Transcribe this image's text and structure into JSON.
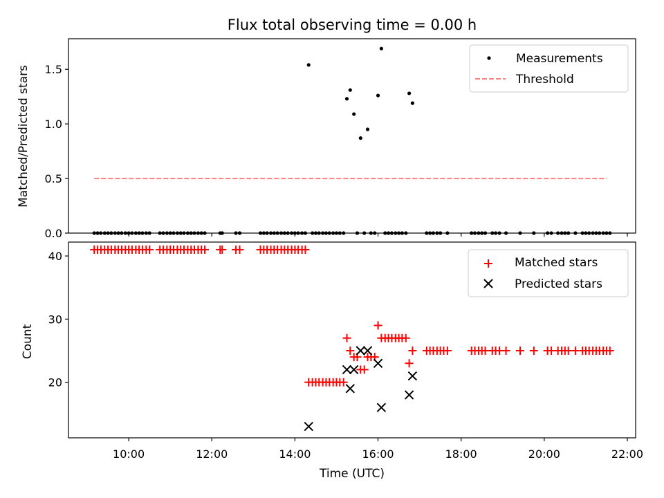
{
  "chart_data": [
    {
      "type": "scatter",
      "title": "Flux total observing time = 0.00 h",
      "xlabel": "",
      "ylabel": "Matched/Predicted stars",
      "xlim": [
        8.55,
        22.2
      ],
      "ylim": [
        0.0,
        1.78
      ],
      "yticks": [
        0.0,
        0.5,
        1.0,
        1.5
      ],
      "ytick_labels": [
        "0.0",
        "0.5",
        "1.0",
        "1.5"
      ],
      "legend_position": "top-right",
      "series": [
        {
          "name": "Measurements",
          "kind": "points",
          "color": "#000000",
          "x": [
            14.33,
            15.25,
            15.33,
            15.42,
            15.58,
            15.75,
            16.0,
            16.08,
            16.75,
            16.83
          ],
          "y": [
            1.54,
            1.23,
            1.31,
            1.09,
            0.87,
            0.95,
            1.26,
            1.69,
            1.28,
            1.19
          ],
          "zero_x": [
            9.17,
            9.25,
            9.33,
            9.42,
            9.5,
            9.58,
            9.67,
            9.75,
            9.83,
            9.92,
            10.0,
            10.08,
            10.17,
            10.25,
            10.33,
            10.42,
            10.5,
            10.75,
            10.83,
            10.92,
            11.0,
            11.08,
            11.17,
            11.25,
            11.33,
            11.42,
            11.5,
            11.58,
            11.67,
            11.75,
            11.83,
            12.2,
            12.25,
            12.58,
            12.67,
            13.17,
            13.25,
            13.33,
            13.42,
            13.5,
            13.58,
            13.67,
            13.75,
            13.83,
            13.92,
            14.0,
            14.08,
            14.17,
            14.25,
            14.42,
            14.5,
            14.58,
            14.67,
            14.75,
            14.83,
            14.92,
            15.0,
            15.08,
            15.17,
            15.5,
            15.67,
            15.83,
            15.92,
            16.17,
            16.25,
            16.33,
            16.42,
            16.5,
            16.58,
            16.67,
            17.17,
            17.25,
            17.33,
            17.42,
            17.5,
            17.67,
            18.25,
            18.33,
            18.42,
            18.5,
            18.58,
            18.75,
            18.83,
            18.92,
            19.08,
            19.42,
            19.75,
            20.08,
            20.17,
            20.33,
            20.42,
            20.5,
            20.58,
            20.75,
            20.92,
            21.0,
            21.08,
            21.17,
            21.25,
            21.33,
            21.42,
            21.5,
            21.58
          ]
        },
        {
          "name": "Threshold",
          "kind": "dashed-line",
          "color": "#ff7f7f",
          "x": [
            9.17,
            21.5
          ],
          "y": [
            0.5,
            0.5
          ]
        }
      ]
    },
    {
      "type": "scatter",
      "title": "",
      "xlabel": "Time (UTC)",
      "ylabel": "Count",
      "xlim": [
        8.55,
        22.2
      ],
      "ylim": [
        11.2,
        42.2
      ],
      "yticks": [
        20,
        30,
        40
      ],
      "ytick_labels": [
        "20",
        "30",
        "40"
      ],
      "xticks": [
        10,
        12,
        14,
        16,
        18,
        20,
        22
      ],
      "xtick_labels": [
        "10:00",
        "12:00",
        "14:00",
        "16:00",
        "18:00",
        "20:00",
        "22:00"
      ],
      "legend_position": "top-right",
      "series": [
        {
          "name": "Matched stars",
          "marker": "plus",
          "color": "#ff0000",
          "x": [
            9.17,
            9.25,
            9.33,
            9.42,
            9.5,
            9.58,
            9.67,
            9.75,
            9.83,
            9.92,
            10.0,
            10.08,
            10.17,
            10.25,
            10.33,
            10.42,
            10.5,
            10.75,
            10.83,
            10.92,
            11.0,
            11.08,
            11.17,
            11.25,
            11.33,
            11.42,
            11.5,
            11.58,
            11.67,
            11.75,
            11.83,
            12.2,
            12.25,
            12.58,
            12.67,
            13.17,
            13.25,
            13.33,
            13.42,
            13.5,
            13.58,
            13.67,
            13.75,
            13.83,
            13.92,
            14.0,
            14.08,
            14.17,
            14.25,
            14.33,
            14.42,
            14.5,
            14.58,
            14.67,
            14.75,
            14.83,
            14.92,
            15.0,
            15.08,
            15.17,
            15.25,
            15.33,
            15.42,
            15.5,
            15.58,
            15.67,
            15.75,
            15.83,
            15.92,
            16.0,
            16.08,
            16.17,
            16.25,
            16.33,
            16.42,
            16.5,
            16.58,
            16.67,
            16.75,
            16.83,
            17.17,
            17.25,
            17.33,
            17.42,
            17.5,
            17.58,
            17.67,
            18.25,
            18.33,
            18.42,
            18.5,
            18.58,
            18.75,
            18.83,
            18.92,
            19.08,
            19.42,
            19.75,
            20.08,
            20.17,
            20.33,
            20.42,
            20.5,
            20.58,
            20.75,
            20.92,
            21.0,
            21.08,
            21.17,
            21.25,
            21.33,
            21.42,
            21.5,
            21.58
          ],
          "y": [
            41,
            41,
            41,
            41,
            41,
            41,
            41,
            41,
            41,
            41,
            41,
            41,
            41,
            41,
            41,
            41,
            41,
            41,
            41,
            41,
            41,
            41,
            41,
            41,
            41,
            41,
            41,
            41,
            41,
            41,
            41,
            41,
            41,
            41,
            41,
            41,
            41,
            41,
            41,
            41,
            41,
            41,
            41,
            41,
            41,
            41,
            41,
            41,
            41,
            20,
            20,
            20,
            20,
            20,
            20,
            20,
            20,
            20,
            20,
            20,
            27,
            25,
            24,
            24,
            22,
            22,
            24,
            24,
            24,
            29,
            27,
            27,
            27,
            27,
            27,
            27,
            27,
            27,
            23,
            25,
            25,
            25,
            25,
            25,
            25,
            25,
            25,
            25,
            25,
            25,
            25,
            25,
            25,
            25,
            25,
            25,
            25,
            25,
            25,
            25,
            25,
            25,
            25,
            25,
            25,
            25,
            25,
            25,
            25,
            25,
            25,
            25,
            25,
            25
          ]
        },
        {
          "name": "Predicted stars",
          "marker": "x",
          "color": "#000000",
          "x": [
            14.33,
            15.25,
            15.33,
            15.42,
            15.58,
            15.75,
            16.0,
            16.08,
            16.75,
            16.83
          ],
          "y": [
            13,
            22,
            19,
            22,
            25,
            25,
            23,
            16,
            18,
            21
          ]
        }
      ]
    }
  ]
}
